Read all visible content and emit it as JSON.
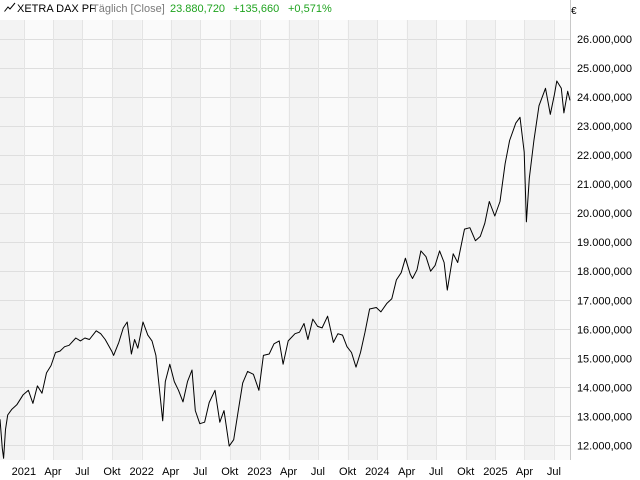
{
  "header": {
    "name": "XETRA DAX PF",
    "frequency": "Täglich [Close]",
    "last": "23.880,720",
    "change": "+135,660",
    "change_pct": "+0,571%",
    "positive_color": "#1fa31f"
  },
  "chart_data": {
    "type": "line",
    "title": "",
    "unit": "€",
    "xlabel": "",
    "ylabel": "",
    "ylim": [
      11500,
      26650
    ],
    "xlim": [
      "2020-10-19",
      "2025-08-20"
    ],
    "y_ticks": [
      12000,
      13000,
      14000,
      15000,
      16000,
      17000,
      18000,
      19000,
      20000,
      21000,
      22000,
      23000,
      24000,
      25000,
      26000
    ],
    "y_tick_labels": [
      "12.000,000",
      "13.000,000",
      "14.000,000",
      "15.000,000",
      "16.000,000",
      "17.000,000",
      "18.000,000",
      "19.000,000",
      "20.000,000",
      "21.000,000",
      "22.000,000",
      "23.000,000",
      "24.000,000",
      "25.000,000",
      "26.000,000"
    ],
    "x_ticks": [
      {
        "date": "2021-01-01",
        "label": "2021"
      },
      {
        "date": "2021-04-01",
        "label": "Apr"
      },
      {
        "date": "2021-07-01",
        "label": "Jul"
      },
      {
        "date": "2021-10-01",
        "label": "Okt"
      },
      {
        "date": "2022-01-01",
        "label": "2022"
      },
      {
        "date": "2022-04-01",
        "label": "Apr"
      },
      {
        "date": "2022-07-01",
        "label": "Jul"
      },
      {
        "date": "2022-10-01",
        "label": "Okt"
      },
      {
        "date": "2023-01-01",
        "label": "2023"
      },
      {
        "date": "2023-04-01",
        "label": "Apr"
      },
      {
        "date": "2023-07-01",
        "label": "Jul"
      },
      {
        "date": "2023-10-01",
        "label": "Okt"
      },
      {
        "date": "2024-01-01",
        "label": "2024"
      },
      {
        "date": "2024-04-01",
        "label": "Apr"
      },
      {
        "date": "2024-07-01",
        "label": "Jul"
      },
      {
        "date": "2024-10-01",
        "label": "Okt"
      },
      {
        "date": "2025-01-01",
        "label": "2025"
      },
      {
        "date": "2025-04-01",
        "label": "Apr"
      },
      {
        "date": "2025-07-01",
        "label": "Jul"
      }
    ],
    "grid": true,
    "line_color": "#000000",
    "series": [
      {
        "name": "",
        "points": [
          [
            "2020-10-19",
            12900
          ],
          [
            "2020-10-26",
            11900
          ],
          [
            "2020-10-30",
            11560
          ],
          [
            "2020-11-05",
            12550
          ],
          [
            "2020-11-12",
            13050
          ],
          [
            "2020-11-25",
            13250
          ],
          [
            "2020-12-10",
            13400
          ],
          [
            "2020-12-30",
            13750
          ],
          [
            "2021-01-15",
            13900
          ],
          [
            "2021-01-29",
            13450
          ],
          [
            "2021-02-12",
            14050
          ],
          [
            "2021-02-26",
            13800
          ],
          [
            "2021-03-12",
            14500
          ],
          [
            "2021-03-26",
            14750
          ],
          [
            "2021-04-09",
            15200
          ],
          [
            "2021-04-23",
            15250
          ],
          [
            "2021-05-07",
            15400
          ],
          [
            "2021-05-21",
            15450
          ],
          [
            "2021-06-11",
            15700
          ],
          [
            "2021-06-25",
            15600
          ],
          [
            "2021-07-09",
            15700
          ],
          [
            "2021-07-23",
            15650
          ],
          [
            "2021-08-13",
            15950
          ],
          [
            "2021-08-27",
            15850
          ],
          [
            "2021-09-10",
            15650
          ],
          [
            "2021-09-30",
            15250
          ],
          [
            "2021-10-06",
            15100
          ],
          [
            "2021-10-22",
            15550
          ],
          [
            "2021-11-05",
            16050
          ],
          [
            "2021-11-17",
            16250
          ],
          [
            "2021-11-30",
            15150
          ],
          [
            "2021-12-10",
            15650
          ],
          [
            "2021-12-20",
            15350
          ],
          [
            "2022-01-05",
            16250
          ],
          [
            "2022-01-20",
            15800
          ],
          [
            "2022-02-02",
            15600
          ],
          [
            "2022-02-14",
            15100
          ],
          [
            "2022-02-24",
            14050
          ],
          [
            "2022-03-07",
            12850
          ],
          [
            "2022-03-15",
            14200
          ],
          [
            "2022-03-29",
            14800
          ],
          [
            "2022-04-12",
            14200
          ],
          [
            "2022-04-25",
            13900
          ],
          [
            "2022-05-09",
            13500
          ],
          [
            "2022-05-23",
            14200
          ],
          [
            "2022-06-06",
            14600
          ],
          [
            "2022-06-16",
            13200
          ],
          [
            "2022-06-30",
            12750
          ],
          [
            "2022-07-15",
            12800
          ],
          [
            "2022-07-29",
            13480
          ],
          [
            "2022-08-16",
            13900
          ],
          [
            "2022-08-31",
            12800
          ],
          [
            "2022-09-13",
            13200
          ],
          [
            "2022-09-29",
            11980
          ],
          [
            "2022-10-13",
            12200
          ],
          [
            "2022-10-28",
            13250
          ],
          [
            "2022-11-10",
            14150
          ],
          [
            "2022-11-25",
            14550
          ],
          [
            "2022-12-13",
            14450
          ],
          [
            "2022-12-30",
            13900
          ],
          [
            "2023-01-13",
            15100
          ],
          [
            "2023-01-31",
            15150
          ],
          [
            "2023-02-15",
            15500
          ],
          [
            "2023-03-03",
            15600
          ],
          [
            "2023-03-15",
            14800
          ],
          [
            "2023-03-31",
            15600
          ],
          [
            "2023-04-21",
            15850
          ],
          [
            "2023-05-05",
            15900
          ],
          [
            "2023-05-19",
            16200
          ],
          [
            "2023-05-31",
            15650
          ],
          [
            "2023-06-15",
            16350
          ],
          [
            "2023-06-30",
            16100
          ],
          [
            "2023-07-14",
            16050
          ],
          [
            "2023-07-31",
            16450
          ],
          [
            "2023-08-18",
            15550
          ],
          [
            "2023-09-01",
            15850
          ],
          [
            "2023-09-15",
            15800
          ],
          [
            "2023-09-29",
            15400
          ],
          [
            "2023-10-13",
            15200
          ],
          [
            "2023-10-27",
            14700
          ],
          [
            "2023-11-10",
            15200
          ],
          [
            "2023-11-24",
            15900
          ],
          [
            "2023-12-08",
            16700
          ],
          [
            "2023-12-29",
            16750
          ],
          [
            "2024-01-12",
            16600
          ],
          [
            "2024-01-31",
            16900
          ],
          [
            "2024-02-15",
            17050
          ],
          [
            "2024-02-29",
            17700
          ],
          [
            "2024-03-15",
            17950
          ],
          [
            "2024-03-28",
            18450
          ],
          [
            "2024-04-12",
            17900
          ],
          [
            "2024-04-19",
            17750
          ],
          [
            "2024-05-03",
            18050
          ],
          [
            "2024-05-15",
            18700
          ],
          [
            "2024-05-31",
            18500
          ],
          [
            "2024-06-14",
            18000
          ],
          [
            "2024-06-28",
            18200
          ],
          [
            "2024-07-12",
            18700
          ],
          [
            "2024-07-26",
            18300
          ],
          [
            "2024-08-05",
            17350
          ],
          [
            "2024-08-23",
            18600
          ],
          [
            "2024-09-06",
            18300
          ],
          [
            "2024-09-27",
            19450
          ],
          [
            "2024-10-14",
            19500
          ],
          [
            "2024-10-31",
            19050
          ],
          [
            "2024-11-15",
            19200
          ],
          [
            "2024-11-29",
            19650
          ],
          [
            "2024-12-13",
            20400
          ],
          [
            "2024-12-30",
            19900
          ],
          [
            "2025-01-15",
            20400
          ],
          [
            "2025-01-31",
            21700
          ],
          [
            "2025-02-14",
            22500
          ],
          [
            "2025-03-05",
            23100
          ],
          [
            "2025-03-18",
            23300
          ],
          [
            "2025-03-31",
            22100
          ],
          [
            "2025-04-07",
            19700
          ],
          [
            "2025-04-16",
            21200
          ],
          [
            "2025-04-30",
            22500
          ],
          [
            "2025-05-16",
            23700
          ],
          [
            "2025-06-05",
            24300
          ],
          [
            "2025-06-20",
            23400
          ],
          [
            "2025-07-03",
            24100
          ],
          [
            "2025-07-10",
            24550
          ],
          [
            "2025-07-24",
            24300
          ],
          [
            "2025-08-01",
            23450
          ],
          [
            "2025-08-13",
            24200
          ],
          [
            "2025-08-20",
            23880
          ]
        ]
      }
    ]
  }
}
